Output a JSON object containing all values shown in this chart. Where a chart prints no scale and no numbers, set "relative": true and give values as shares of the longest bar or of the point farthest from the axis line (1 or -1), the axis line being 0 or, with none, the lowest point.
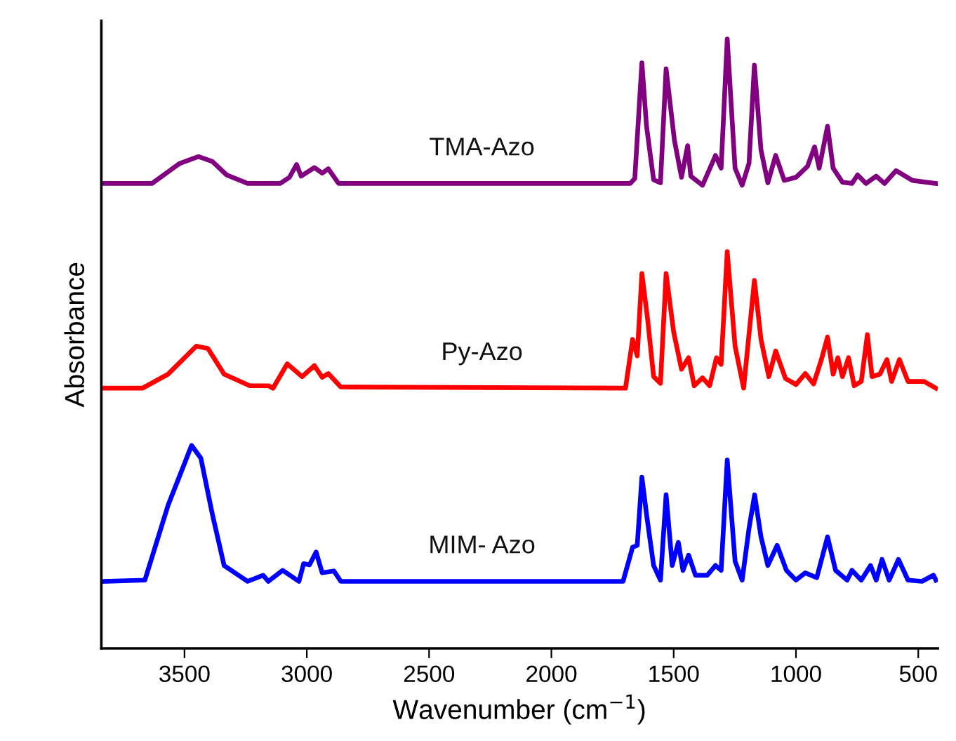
{
  "chart_data": {
    "type": "line",
    "relative": true,
    "xlabel": "Wavenumber (cm$^{−1}$)",
    "ylabel": "Absorbance",
    "xlim": [
      3840,
      420
    ],
    "xticks": [
      3500,
      3000,
      2500,
      2000,
      1500,
      1000,
      500
    ],
    "grid": false,
    "legend": false,
    "marker": "none",
    "line_style": "solid",
    "tick_labels": "x",
    "series": [
      {
        "name": "TMA-Azo",
        "color": "#800080",
        "x": [
          3834,
          3633,
          3519,
          3443,
          3386,
          3328,
          3242,
          3109,
          3071,
          3042,
          3023,
          2969,
          2937,
          2912,
          2870,
          1678,
          1659,
          1630,
          1611,
          1582,
          1554,
          1531,
          1497,
          1468,
          1443,
          1430,
          1382,
          1329,
          1306,
          1281,
          1249,
          1220,
          1192,
          1170,
          1143,
          1115,
          1083,
          1048,
          1000,
          953,
          924,
          905,
          871,
          848,
          810,
          771,
          748,
          714,
          672,
          638,
          591,
          524,
          428
        ],
        "values": [
          0.763,
          0.763,
          0.796,
          0.807,
          0.799,
          0.777,
          0.763,
          0.763,
          0.773,
          0.794,
          0.775,
          0.789,
          0.78,
          0.787,
          0.763,
          0.763,
          0.771,
          0.961,
          0.857,
          0.769,
          0.764,
          0.951,
          0.834,
          0.773,
          0.825,
          0.775,
          0.76,
          0.809,
          0.788,
          1.0,
          0.788,
          0.76,
          0.796,
          0.957,
          0.818,
          0.764,
          0.809,
          0.768,
          0.773,
          0.791,
          0.823,
          0.788,
          0.857,
          0.788,
          0.765,
          0.763,
          0.777,
          0.763,
          0.775,
          0.763,
          0.784,
          0.768,
          0.763
        ]
      },
      {
        "name": "Py-Azo",
        "color": "#ff0000",
        "x": [
          3834,
          3672,
          3567,
          3452,
          3404,
          3338,
          3233,
          3157,
          3138,
          3080,
          3019,
          2969,
          2937,
          2912,
          2861,
          1697,
          1668,
          1649,
          1630,
          1607,
          1582,
          1554,
          1531,
          1500,
          1468,
          1439,
          1416,
          1382,
          1353,
          1325,
          1306,
          1281,
          1249,
          1214,
          1170,
          1143,
          1111,
          1083,
          1043,
          1000,
          962,
          928,
          896,
          871,
          848,
          829,
          810,
          785,
          762,
          733,
          708,
          689,
          657,
          628,
          609,
          577,
          542,
          476,
          428
        ],
        "values": [
          0.427,
          0.427,
          0.45,
          0.496,
          0.492,
          0.45,
          0.431,
          0.431,
          0.427,
          0.467,
          0.446,
          0.464,
          0.445,
          0.451,
          0.429,
          0.427,
          0.507,
          0.48,
          0.615,
          0.542,
          0.446,
          0.435,
          0.615,
          0.519,
          0.458,
          0.477,
          0.431,
          0.444,
          0.431,
          0.477,
          0.466,
          0.651,
          0.496,
          0.427,
          0.604,
          0.507,
          0.446,
          0.488,
          0.443,
          0.433,
          0.451,
          0.434,
          0.474,
          0.511,
          0.45,
          0.477,
          0.446,
          0.477,
          0.431,
          0.438,
          0.515,
          0.446,
          0.45,
          0.474,
          0.438,
          0.474,
          0.438,
          0.438,
          0.427
        ]
      },
      {
        "name": "MIM- Azo",
        "color": "#0000ff",
        "x": [
          3834,
          3662,
          3567,
          3471,
          3433,
          3386,
          3338,
          3242,
          3179,
          3157,
          3099,
          3032,
          3013,
          2989,
          2962,
          2937,
          2889,
          2861,
          1707,
          1668,
          1649,
          1630,
          1611,
          1582,
          1554,
          1531,
          1506,
          1481,
          1462,
          1439,
          1411,
          1363,
          1329,
          1306,
          1281,
          1249,
          1220,
          1192,
          1169,
          1143,
          1115,
          1077,
          1039,
          1000,
          962,
          915,
          871,
          838,
          791,
          771,
          733,
          695,
          672,
          648,
          619,
          581,
          542,
          485,
          438,
          428
        ],
        "values": [
          0.11,
          0.112,
          0.235,
          0.333,
          0.312,
          0.22,
          0.136,
          0.11,
          0.12,
          0.11,
          0.128,
          0.11,
          0.139,
          0.137,
          0.158,
          0.124,
          0.127,
          0.11,
          0.11,
          0.166,
          0.169,
          0.281,
          0.22,
          0.136,
          0.112,
          0.252,
          0.136,
          0.174,
          0.128,
          0.153,
          0.12,
          0.12,
          0.136,
          0.128,
          0.309,
          0.143,
          0.112,
          0.197,
          0.252,
          0.183,
          0.136,
          0.169,
          0.128,
          0.112,
          0.124,
          0.116,
          0.183,
          0.128,
          0.112,
          0.128,
          0.112,
          0.136,
          0.112,
          0.146,
          0.112,
          0.146,
          0.112,
          0.11,
          0.12,
          0.112
        ]
      }
    ]
  }
}
